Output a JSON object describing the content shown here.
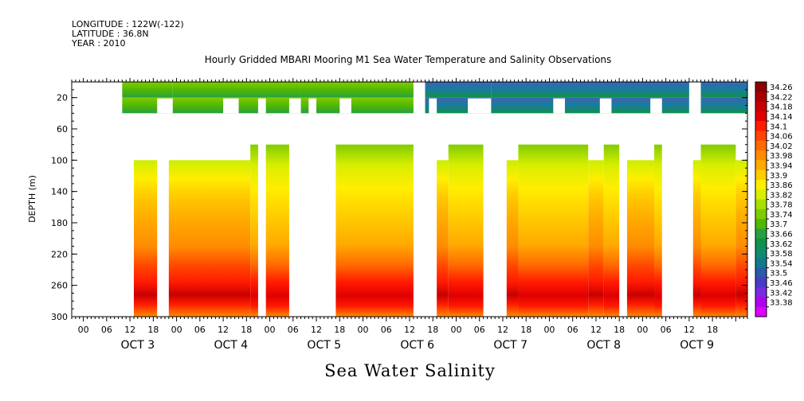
{
  "header": {
    "longitude": "LONGITUDE : 122W(-122)",
    "latitude": "LATITUDE : 36.8N",
    "year": "YEAR : 2010"
  },
  "title": "Hourly Gridded MBARI Mooring M1 Sea Water Temperature and Salinity Observations",
  "chart_data": {
    "type": "heatmap",
    "title": "Hourly Gridded MBARI Mooring M1 Sea Water Temperature and Salinity Observations",
    "xlabel": "Sea Water Salinity",
    "ylabel": "DEPTH (m)",
    "x_units": "hours since OCT 3 00:00",
    "xlim": [
      -9,
      165
    ],
    "ylim": [
      300,
      0
    ],
    "y_ticks": [
      20,
      60,
      100,
      140,
      180,
      220,
      260,
      300
    ],
    "x_hour_ticks": [
      "00",
      "06",
      "12",
      "18",
      "00",
      "06",
      "12",
      "18",
      "00",
      "06",
      "12",
      "18",
      "00",
      "06",
      "12",
      "18",
      "00",
      "06",
      "12",
      "18",
      "00",
      "06",
      "12",
      "18",
      "00",
      "06",
      "12",
      "18"
    ],
    "day_labels": [
      "OCT  3",
      "OCT  4",
      "OCT  5",
      "OCT  6",
      "OCT  7",
      "OCT  8",
      "OCT  9"
    ],
    "colorbar_labels": [
      "34.26",
      "34.22",
      "34.18",
      "34.14",
      "34.1",
      "34.06",
      "34.02",
      "33.98",
      "33.94",
      "33.9",
      "33.86",
      "33.82",
      "33.78",
      "33.74",
      "33.7",
      "33.66",
      "33.62",
      "33.58",
      "33.54",
      "33.5",
      "33.46",
      "33.42",
      "33.38"
    ],
    "colorbar_colors": [
      "#8b0000",
      "#a80000",
      "#c80000",
      "#e00000",
      "#ff1a00",
      "#ff4500",
      "#ff6a00",
      "#ff8c00",
      "#ffaa00",
      "#ffcc00",
      "#ffee00",
      "#d8ee00",
      "#a8e000",
      "#80cc00",
      "#50b800",
      "#28a040",
      "#10904c",
      "#108a6e",
      "#107a8a",
      "#2a5aa8",
      "#4a3ac8",
      "#7a2ae0",
      "#b000f0",
      "#dd00ff"
    ],
    "shallow_segments": [
      {
        "start": 4,
        "end": 17,
        "value": 33.7,
        "gaps_lower": [
          [
            17,
            20
          ]
        ]
      },
      {
        "start": 17,
        "end": 50,
        "value": 33.72
      },
      {
        "start": 50,
        "end": 79,
        "value": 33.7
      },
      {
        "start": 82,
        "end": 99,
        "value": 33.5
      },
      {
        "start": 99,
        "end": 150,
        "value": 33.5
      },
      {
        "start": 153,
        "end": 165,
        "value": 33.52
      }
    ],
    "deep_segments": [
      {
        "start": 7,
        "end": 13,
        "top": 100
      },
      {
        "start": 16,
        "end": 37,
        "top": 100
      },
      {
        "start": 37,
        "end": 39,
        "top": 80
      },
      {
        "start": 41,
        "end": 47,
        "top": 80
      },
      {
        "start": 59,
        "end": 79,
        "top": 80
      },
      {
        "start": 85,
        "end": 88,
        "top": 100
      },
      {
        "start": 88,
        "end": 97,
        "top": 80
      },
      {
        "start": 103,
        "end": 106,
        "top": 100
      },
      {
        "start": 106,
        "end": 124,
        "top": 80
      },
      {
        "start": 124,
        "end": 128,
        "top": 100
      },
      {
        "start": 128,
        "end": 132,
        "top": 80
      },
      {
        "start": 134,
        "end": 141,
        "top": 100
      },
      {
        "start": 141,
        "end": 143,
        "top": 80
      },
      {
        "start": 151,
        "end": 153,
        "top": 100
      },
      {
        "start": 153,
        "end": 162,
        "top": 80
      },
      {
        "start": 162,
        "end": 165,
        "top": 100
      }
    ],
    "grid": false,
    "legend": "colorbar-right"
  }
}
